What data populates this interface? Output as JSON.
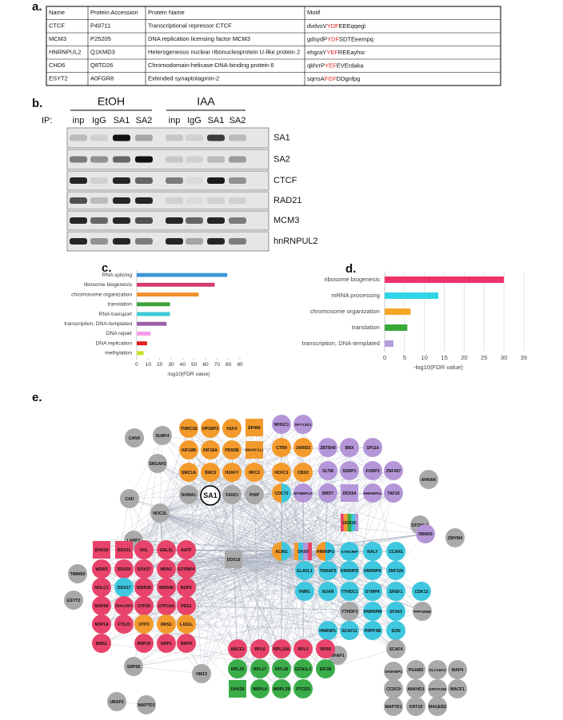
{
  "panel_a": {
    "label": "a.",
    "header": [
      "Name",
      "Protein Accession",
      "Protein Name",
      "Motif"
    ],
    "rows": [
      {
        "name": "CTCF",
        "accession": "P49711",
        "protein": "Transcriptional repressor CTCF",
        "motif": {
          "before": "dvdvsV",
          "core": "YDF",
          "after": "EEEqqegl"
        }
      },
      {
        "name": "MCM3",
        "accession": "P25205",
        "protein": "DNA replication licensing factor MCM3",
        "motif": {
          "before": "gdsydP",
          "core": "YDF",
          "after": "SDTEeempq"
        }
      },
      {
        "name": "HNRNPUL2",
        "accession": "Q1KMD3",
        "protein": "Heterogeneous nuclear ribonucleoprotein U-like protein 2",
        "motif": {
          "before": "ehgraY",
          "core": "YEF",
          "after": "REEayhsr"
        }
      },
      {
        "name": "CHD6",
        "accession": "Q8TD26",
        "protein": "Chromodomain-helicase-DNA-binding protein 6",
        "motif": {
          "before": "qkhrrP",
          "core": "YEF",
          "after": "EVErdaka"
        }
      },
      {
        "name": "ESYT2",
        "accession": "A0FGR8",
        "protein": "Extended synaptotagmin-2",
        "motif": {
          "before": "sqrrsA",
          "core": "FGF",
          "after": "DDgnfpg"
        }
      }
    ],
    "motif_color": "#e02020"
  },
  "panel_b": {
    "label": "b.",
    "ip": "IP:",
    "conditions": [
      "EtOH",
      "IAA"
    ],
    "lanes": [
      "inp",
      "IgG",
      "SA1",
      "SA2",
      "inp",
      "IgG",
      "SA1",
      "SA2"
    ],
    "rows": [
      "SA1",
      "SA2",
      "CTCF",
      "RAD21",
      "MCM3",
      "hnRNPUL2"
    ]
  },
  "chart_data": [
    {
      "type": "bar",
      "orientation": "horizontal",
      "panel_label": "c.",
      "x_label": "-log10(FDR value)",
      "categories": [
        "RNA splicing",
        "ribosome biogenesis",
        "chromosome organization",
        "translation",
        "RNA transport",
        "transcription, DNA-templated",
        "DNA repair",
        "DNA replication",
        "methylation"
      ],
      "values": [
        79,
        68,
        54,
        29,
        29,
        26,
        12,
        9,
        6
      ],
      "colors": [
        "#3a97d6",
        "#d43c73",
        "#f0902a",
        "#3ca33a",
        "#3ec9d6",
        "#9b5da8",
        "#f59ae6",
        "#e02020",
        "#c6e02a"
      ],
      "xlim": [
        0,
        90
      ],
      "xticks": [
        0,
        10,
        20,
        30,
        40,
        50,
        60,
        70,
        80,
        90
      ],
      "grid": false
    },
    {
      "type": "bar",
      "orientation": "horizontal",
      "panel_label": "d.",
      "x_label": "-log10(FDR value)",
      "categories": [
        "ribosome biogenesis",
        "mRNA processing",
        "chromosome organization",
        "translation",
        "transcription, DNA-templated"
      ],
      "values": [
        30,
        13.5,
        6.5,
        5.7,
        2.2
      ],
      "colors": [
        "#f0306a",
        "#2ed6e6",
        "#f5a623",
        "#3aa83a",
        "#b39ddb"
      ],
      "xlim": [
        0,
        35
      ],
      "xticks": [
        0,
        5,
        10,
        15,
        20,
        25,
        30,
        35
      ],
      "grid": true
    }
  ],
  "panel_e": {
    "label": "e.",
    "nodes": [
      {
        "label": "TNRC18",
        "color": "#f39a2d"
      },
      {
        "label": "HP1BP3",
        "color": "#f39a2d"
      },
      {
        "label": "H1FX",
        "color": "#f39a2d"
      },
      {
        "label": "EP400",
        "color": "#f39a2d",
        "shape": "square"
      },
      {
        "label": "WHSC1",
        "color": "#b596d8"
      },
      {
        "label": "SPTY2D1",
        "color": "#b596d8"
      },
      {
        "label": "CANX",
        "color": "#a9a9a9"
      },
      {
        "label": "SURF4",
        "color": "#a9a9a9"
      },
      {
        "label": "SRGAP2",
        "color": "#a9a9a9"
      },
      {
        "label": "KIF18B",
        "color": "#f39a2d"
      },
      {
        "label": "KIF18A",
        "color": "#f39a2d"
      },
      {
        "label": "PDS5B",
        "color": "#f39a2d"
      },
      {
        "label": "SMARCAL1",
        "color": "#f39a2d",
        "shape": "square"
      },
      {
        "label": "CTR9",
        "color": "#f39a2d"
      },
      {
        "label": "JARID2",
        "color": "#f39a2d"
      },
      {
        "label": "ZBTB40",
        "color": "#b596d8"
      },
      {
        "label": "BBX",
        "color": "#b596d8"
      },
      {
        "label": "SP110",
        "color": "#b596d8"
      },
      {
        "label": "SMC1A",
        "color": "#f39a2d"
      },
      {
        "label": "SMC3",
        "color": "#f39a2d"
      },
      {
        "label": "H2AFY",
        "color": "#f39a2d"
      },
      {
        "label": "RFC3",
        "color": "#f39a2d"
      },
      {
        "label": "HCFC1",
        "color": "#f39a2d"
      },
      {
        "label": "CBX2",
        "color": "#f39a2d"
      },
      {
        "label": "SLTM",
        "color": "#b596d8"
      },
      {
        "label": "SSRP1",
        "color": "#b596d8"
      },
      {
        "label": "FUBP3",
        "color": "#b596d8"
      },
      {
        "label": "ZNF407",
        "color": "#b596d8"
      },
      {
        "label": "AHNAK",
        "color": "#a9a9a9"
      },
      {
        "label": "CAD",
        "color": "#a9a9a9"
      },
      {
        "label": "NUMA1",
        "color": "#a9a9a9"
      },
      {
        "label": "SA1",
        "color": "#ffffff",
        "outline": "#000000"
      },
      {
        "label": "FANCI",
        "color": "#a9a9a9"
      },
      {
        "label": "PHIP",
        "color": "#a9a9a9"
      },
      {
        "label": "CDC73",
        "colors": [
          "#f39a2d",
          "#3ec7df"
        ]
      },
      {
        "label": "MYBBP1A",
        "color": "#b596d8"
      },
      {
        "label": "BRD7",
        "color": "#b596d8"
      },
      {
        "label": "DDX54",
        "color": "#b596d8",
        "shape": "square"
      },
      {
        "label": "HNRNPDL",
        "color": "#b596d8"
      },
      {
        "label": "TAF15",
        "color": "#b596d8"
      },
      {
        "label": "NOC3L",
        "color": "#a9a9a9"
      },
      {
        "label": "LARP7",
        "color": "#a9a9a9"
      },
      {
        "label": "STOML2",
        "color": "#a9a9a9"
      },
      {
        "label": "DDX3X",
        "colors": [
          "#e8436a",
          "#f39a2d",
          "#3aad48",
          "#3ec7df",
          "#b596d8"
        ],
        "shape": "square"
      },
      {
        "label": "ACIN1",
        "colors": [
          "#f39a2d",
          "#3ec7df"
        ]
      },
      {
        "label": "DHX9",
        "colors": [
          "#f39a2d",
          "#3ec7df",
          "#b596d8",
          "#e8436a"
        ],
        "shape": "square"
      },
      {
        "label": "HNRNPU",
        "colors": [
          "#f39a2d",
          "#3ec7df"
        ]
      },
      {
        "label": "SYNCRIP",
        "color": "#3ec7df"
      },
      {
        "label": "RALY",
        "color": "#3ec7df"
      },
      {
        "label": "CCAR1",
        "color": "#3ec7df"
      },
      {
        "label": "RBM39",
        "color": "#b596d8"
      },
      {
        "label": "ZMYM4",
        "color": "#a9a9a9"
      },
      {
        "label": "DHX30",
        "color": "#e8436a",
        "shape": "square"
      },
      {
        "label": "DDX31",
        "color": "#e8436a",
        "shape": "square"
      },
      {
        "label": "NVL",
        "color": "#e8436a"
      },
      {
        "label": "GNL3L",
        "color": "#e8436a"
      },
      {
        "label": "AATF",
        "color": "#e8436a"
      },
      {
        "label": "DDX10",
        "color": "#a9a9a9",
        "shape": "square"
      },
      {
        "label": "TIMM50",
        "color": "#a9a9a9"
      },
      {
        "label": "WDR3",
        "color": "#e8436a"
      },
      {
        "label": "DDX56",
        "color": "#e8436a"
      },
      {
        "label": "DDX27",
        "color": "#e8436a"
      },
      {
        "label": "MDN1",
        "color": "#e8436a"
      },
      {
        "label": "GTPBP4",
        "color": "#e8436a"
      },
      {
        "label": "ELAVL1",
        "color": "#3ec7df"
      },
      {
        "label": "THRAP3",
        "color": "#3ec7df"
      },
      {
        "label": "HNRNPD",
        "color": "#3ec7df"
      },
      {
        "label": "HNRNPK",
        "color": "#3ec7df"
      },
      {
        "label": "ZNF326",
        "color": "#3ec7df"
      },
      {
        "label": "NOLC1",
        "color": "#e8436a"
      },
      {
        "label": "DDX17",
        "color": "#3ec7df"
      },
      {
        "label": "WDR36",
        "color": "#e8436a"
      },
      {
        "label": "WDR46",
        "color": "#e8436a"
      },
      {
        "label": "BOP1",
        "color": "#e8436a"
      },
      {
        "label": "FMR1",
        "color": "#3ec7df"
      },
      {
        "label": "ADAR",
        "color": "#3ec7df"
      },
      {
        "label": "YTHDC1",
        "color": "#3ec7df"
      },
      {
        "label": "SYMPK",
        "color": "#3ec7df"
      },
      {
        "label": "SRSF1",
        "color": "#3ec7df"
      },
      {
        "label": "CDK12",
        "color": "#3ec7df"
      },
      {
        "label": "ESYT2",
        "color": "#a9a9a9"
      },
      {
        "label": "NOP58",
        "color": "#e8436a"
      },
      {
        "label": "EBNA1BP2",
        "color": "#e8436a"
      },
      {
        "label": "UTP20",
        "color": "#e8436a"
      },
      {
        "label": "UTP14A",
        "color": "#e8436a"
      },
      {
        "label": "PES1",
        "color": "#e8436a"
      },
      {
        "label": "YTHDF3",
        "color": "#a9a9a9"
      },
      {
        "label": "HNRNPM",
        "color": "#3ec7df"
      },
      {
        "label": "SF3A2",
        "color": "#3ec7df"
      },
      {
        "label": "PPP1R9B",
        "color": "#a9a9a9"
      },
      {
        "label": "NOP14",
        "color": "#e8436a"
      },
      {
        "label": "FTSJ3",
        "color": "#e8436a"
      },
      {
        "label": "UTP3",
        "color": "#f39a2d"
      },
      {
        "label": "RRS1",
        "color": "#f39a2d"
      },
      {
        "label": "LAS1L",
        "color": "#f39a2d"
      },
      {
        "label": "HNRNPL",
        "color": "#3ec7df"
      },
      {
        "label": "SCAF11",
        "color": "#3ec7df"
      },
      {
        "label": "PRPF4B",
        "color": "#3ec7df"
      },
      {
        "label": "SON",
        "color": "#3ec7df"
      },
      {
        "label": "SCAF4",
        "color": "#a9a9a9"
      },
      {
        "label": "MFAP1",
        "color": "#a9a9a9"
      },
      {
        "label": "BMS1",
        "color": "#e8436a"
      },
      {
        "label": "RRP15",
        "color": "#e8436a"
      },
      {
        "label": "RRP1",
        "color": "#e8436a"
      },
      {
        "label": "RRP9",
        "color": "#e8436a"
      },
      {
        "label": "ABCE1",
        "color": "#e8436a"
      },
      {
        "label": "RPL6",
        "color": "#e8436a"
      },
      {
        "label": "RPL10A",
        "color": "#e8436a"
      },
      {
        "label": "RPL5",
        "color": "#e8436a"
      },
      {
        "label": "RPS9",
        "color": "#e8436a"
      },
      {
        "label": "SRP68",
        "color": "#a9a9a9"
      },
      {
        "label": "HM13",
        "color": "#a9a9a9"
      },
      {
        "label": "SH3KBP1",
        "color": "#a9a9a9"
      },
      {
        "label": "PGAM5",
        "color": "#a9a9a9"
      },
      {
        "label": "SLC16A3",
        "color": "#a9a9a9"
      },
      {
        "label": "MAP4",
        "color": "#a9a9a9"
      },
      {
        "label": "RPL29",
        "color": "#3aad48"
      },
      {
        "label": "RPL17",
        "color": "#3aad48"
      },
      {
        "label": "RPL18",
        "color": "#3aad48"
      },
      {
        "label": "GCN1L1",
        "color": "#3aad48"
      },
      {
        "label": "EIF3B",
        "color": "#3aad48"
      },
      {
        "label": "CCDC9",
        "color": "#a9a9a9"
      },
      {
        "label": "ANKHD1",
        "color": "#a9a9a9"
      },
      {
        "label": "GPATCH8",
        "color": "#a9a9a9"
      },
      {
        "label": "MACF1",
        "color": "#a9a9a9"
      },
      {
        "label": "DHX29",
        "color": "#3aad48",
        "shape": "square"
      },
      {
        "label": "MRPL4",
        "color": "#3aad48"
      },
      {
        "label": "MRPL39",
        "color": "#3aad48"
      },
      {
        "label": "PTCD3",
        "color": "#3aad48"
      },
      {
        "label": "UBAP2",
        "color": "#a9a9a9"
      },
      {
        "label": "MAP7D3",
        "color": "#a9a9a9"
      },
      {
        "label": "MAP7D1",
        "color": "#a9a9a9"
      },
      {
        "label": "KRT19",
        "color": "#a9a9a9"
      },
      {
        "label": "MAGEB2",
        "color": "#a9a9a9"
      }
    ]
  }
}
